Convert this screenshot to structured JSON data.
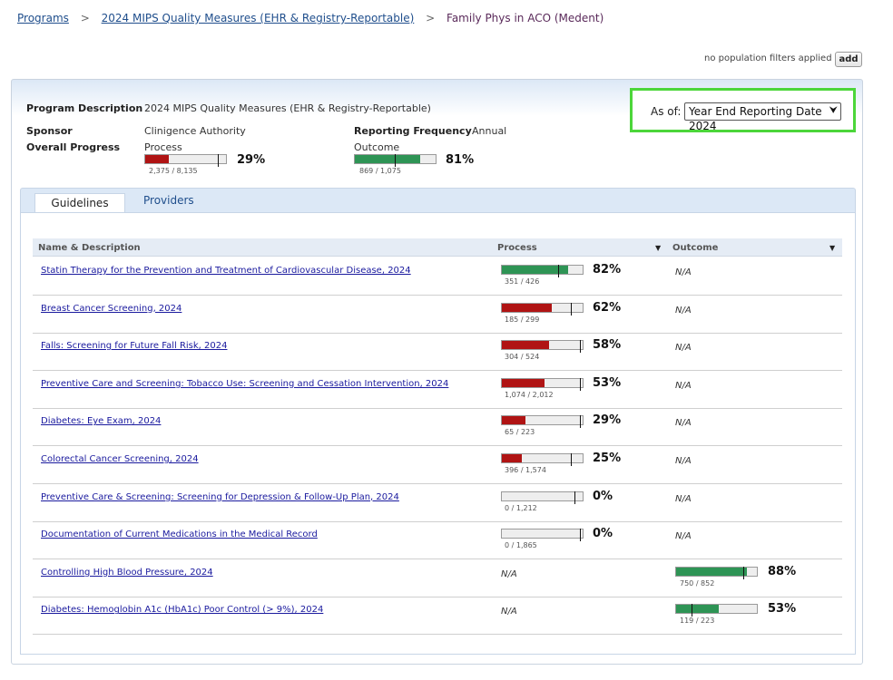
{
  "breadcrumb": {
    "items": [
      "Programs",
      "2024 MIPS Quality Measures (EHR & Registry-Reportable)"
    ],
    "separator": ">",
    "current": "Family Phys in ACO (Medent)"
  },
  "filters": {
    "text": "no population filters applied",
    "add_label": "add"
  },
  "program": {
    "description_label": "Program Description",
    "description": "2024 MIPS Quality Measures (EHR & Registry-Reportable)",
    "sponsor_label": "Sponsor",
    "sponsor": "Clinigence Authority",
    "frequency_label": "Reporting Frequency",
    "frequency": "Annual",
    "progress_label": "Overall Progress",
    "process": {
      "label": "Process",
      "count": "2,375 / 8,135",
      "pct": "29%",
      "fill": 0.29,
      "target": 0.9,
      "color": "red"
    },
    "outcome": {
      "label": "Outcome",
      "count": "869 / 1,075",
      "pct": "81%",
      "fill": 0.81,
      "target": 0.49,
      "color": "green"
    }
  },
  "asof": {
    "label": "As of:",
    "selected": "Year End Reporting Date 2024"
  },
  "tabs": [
    {
      "label": "Guidelines",
      "active": true
    },
    {
      "label": "Providers",
      "active": false
    }
  ],
  "table": {
    "headers": {
      "name": "Name & Description",
      "process": "Process",
      "outcome": "Outcome"
    },
    "na_text": "N/A",
    "rows": [
      {
        "name": "Statin Therapy for the Prevention and Treatment of Cardiovascular Disease, 2024",
        "process": {
          "count": "351 / 426",
          "pct": "82%",
          "fill": 0.82,
          "target": 0.7,
          "color": "green"
        },
        "outcome": null
      },
      {
        "name": "Breast Cancer Screening, 2024",
        "process": {
          "count": "185 / 299",
          "pct": "62%",
          "fill": 0.62,
          "target": 0.85,
          "color": "red"
        },
        "outcome": null
      },
      {
        "name": "Falls: Screening for Future Fall Risk, 2024",
        "process": {
          "count": "304 / 524",
          "pct": "58%",
          "fill": 0.58,
          "target": 0.97,
          "color": "red"
        },
        "outcome": null
      },
      {
        "name": "Preventive Care and Screening: Tobacco Use: Screening and Cessation Intervention, 2024",
        "process": {
          "count": "1,074 / 2,012",
          "pct": "53%",
          "fill": 0.53,
          "target": 0.97,
          "color": "red"
        },
        "outcome": null
      },
      {
        "name": "Diabetes: Eye Exam, 2024",
        "process": {
          "count": "65 / 223",
          "pct": "29%",
          "fill": 0.29,
          "target": 0.97,
          "color": "red"
        },
        "outcome": null
      },
      {
        "name": "Colorectal Cancer Screening, 2024",
        "process": {
          "count": "396 / 1,574",
          "pct": "25%",
          "fill": 0.25,
          "target": 0.85,
          "color": "red"
        },
        "outcome": null
      },
      {
        "name": "Preventive Care & Screening: Screening for Depression & Follow-Up Plan, 2024",
        "process": {
          "count": "0 / 1,212",
          "pct": "0%",
          "fill": 0,
          "target": 0.9,
          "color": "red"
        },
        "outcome": null
      },
      {
        "name": "Documentation of Current Medications in the Medical Record",
        "process": {
          "count": "0 / 1,865",
          "pct": "0%",
          "fill": 0,
          "target": 0.97,
          "color": "red"
        },
        "outcome": null
      },
      {
        "name": "Controlling High Blood Pressure, 2024",
        "process": null,
        "outcome": {
          "count": "750 / 852",
          "pct": "88%",
          "fill": 0.88,
          "target": 0.83,
          "color": "green"
        }
      },
      {
        "name": "Diabetes: Hemoglobin A1c (HbA1c) Poor Control (> 9%), 2024",
        "process": null,
        "outcome": {
          "count": "119 / 223",
          "pct": "53%",
          "fill": 0.53,
          "target": 0.19,
          "color": "green"
        }
      }
    ]
  }
}
